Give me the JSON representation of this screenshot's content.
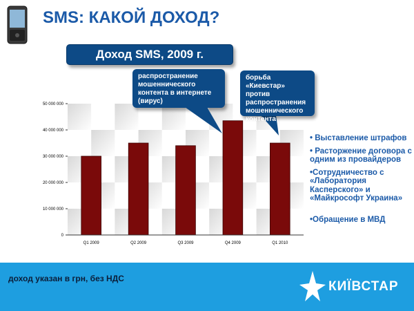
{
  "slide": {
    "title": "SMS: КАКОЙ ДОХОД?",
    "header_box": "Доход SMS, 2009 г."
  },
  "callouts": [
    {
      "text": "распространение мошеннического контента в интернете (вирус)"
    },
    {
      "text": "борьба «Киевстар» против распространения мошеннического контента"
    }
  ],
  "bullets": [
    "• Выставление штрафов",
    "• Расторжение договора с одним из провайдеров",
    "•Сотрудничество с «Лаборатория Касперского» и «Майкрософт Украина»",
    "•Обращение в МВД"
  ],
  "footer": {
    "note": "доход указан в грн, без НДС",
    "logo_text": "КИЇВСТАР"
  },
  "colors": {
    "bar": "#7a0a0a",
    "title": "#1b5aa8",
    "box": "#0d4a86",
    "footer": "#1e9ee0"
  },
  "chart_data": {
    "type": "bar",
    "categories": [
      "Q1 2009",
      "Q2 2009",
      "Q3 2009",
      "Q4 2009",
      "Q1 2010"
    ],
    "values": [
      30000000,
      35000000,
      34000000,
      43500000,
      35000000
    ],
    "y_ticks": [
      "0",
      "10 000 000",
      "20 000 000",
      "30 000 000",
      "40 000 000",
      "50 000 000"
    ],
    "ylim": [
      0,
      50000000
    ],
    "grid": true,
    "legend": "none"
  }
}
